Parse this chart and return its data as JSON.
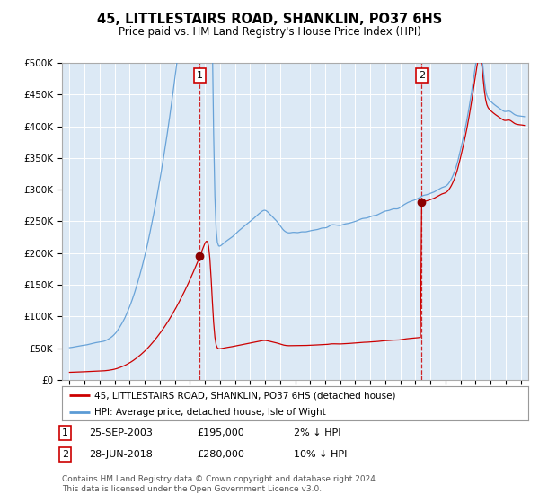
{
  "title": "45, LITTLESTAIRS ROAD, SHANKLIN, PO37 6HS",
  "subtitle": "Price paid vs. HM Land Registry's House Price Index (HPI)",
  "bg_color": "#dce9f5",
  "grid_color": "#ffffff",
  "hpi_color": "#5b9bd5",
  "price_color": "#cc0000",
  "marker_color": "#8b0000",
  "vline_color": "#cc0000",
  "legend_line1": "45, LITTLESTAIRS ROAD, SHANKLIN, PO37 6HS (detached house)",
  "legend_line2": "HPI: Average price, detached house, Isle of Wight",
  "note1_label": "1",
  "note1_date": "25-SEP-2003",
  "note1_price": "£195,000",
  "note1_hpi": "2% ↓ HPI",
  "note2_label": "2",
  "note2_date": "28-JUN-2018",
  "note2_price": "£280,000",
  "note2_hpi": "10% ↓ HPI",
  "footer": "Contains HM Land Registry data © Crown copyright and database right 2024.\nThis data is licensed under the Open Government Licence v3.0.",
  "ylim_max": 500000,
  "ylim_min": 0,
  "yticks": [
    0,
    50000,
    100000,
    150000,
    200000,
    250000,
    300000,
    350000,
    400000,
    450000,
    500000
  ],
  "purchase1_price": 195000,
  "purchase2_price": 280000
}
